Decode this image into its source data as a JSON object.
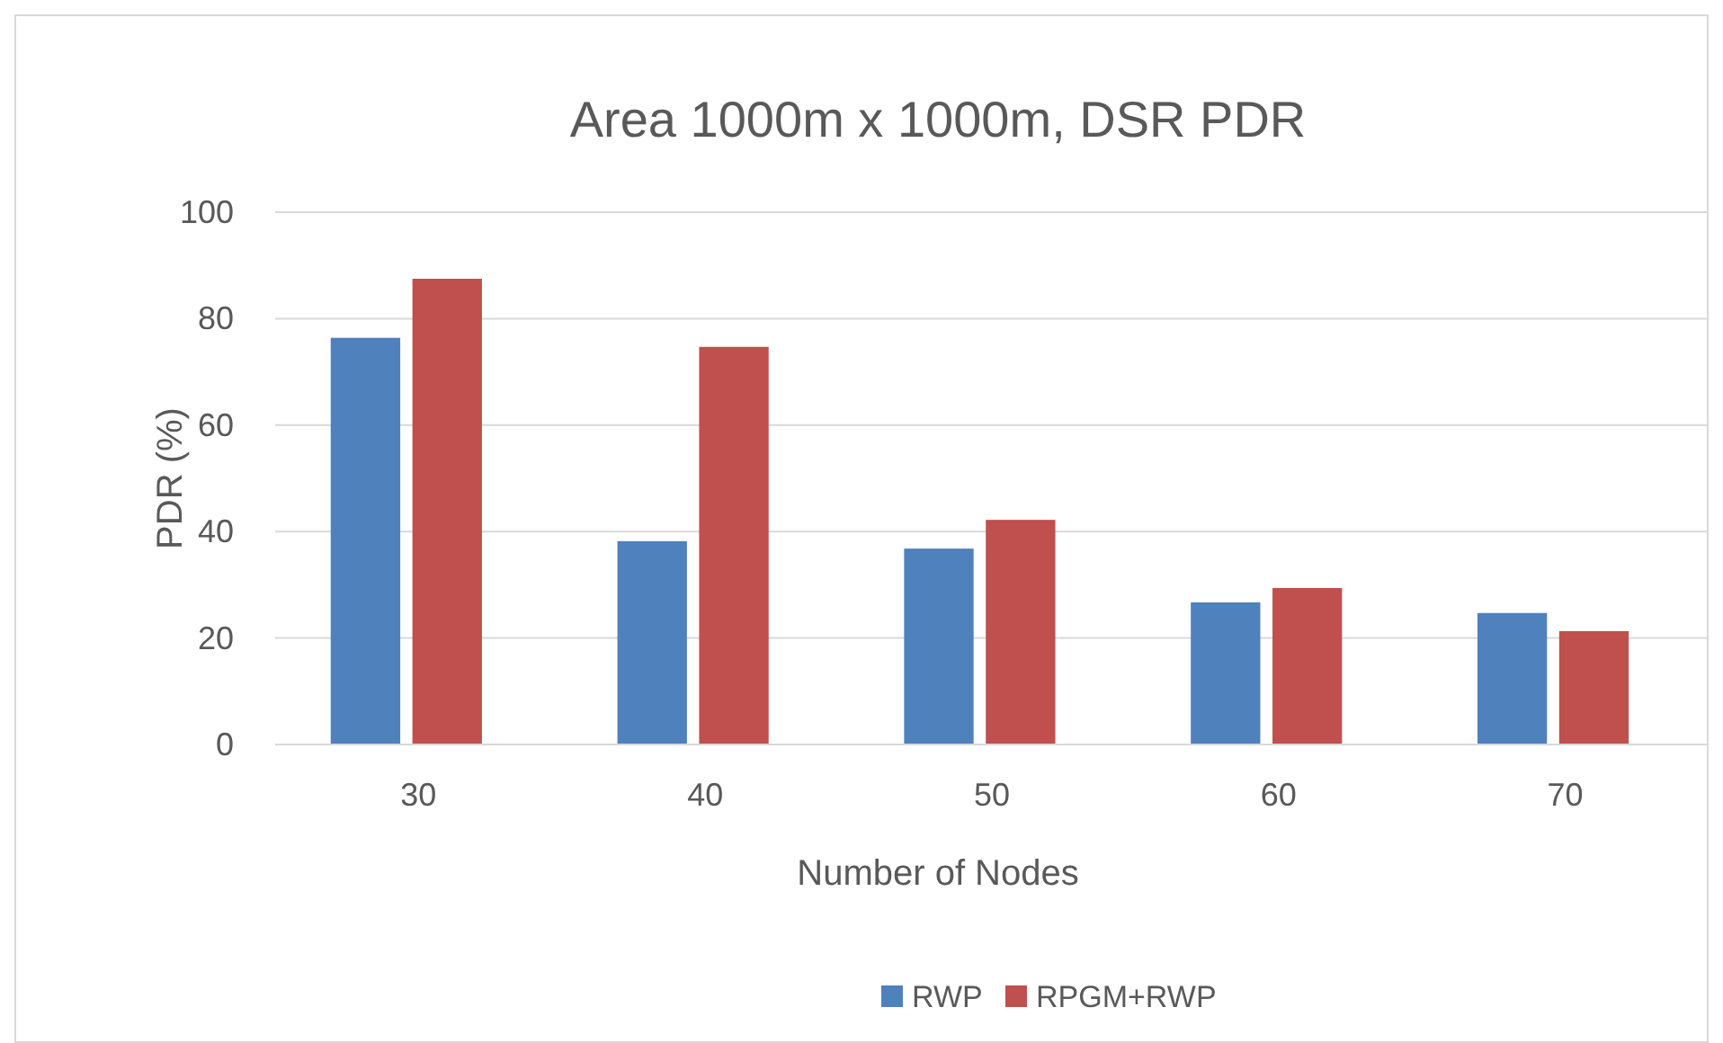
{
  "chart_data": {
    "type": "bar",
    "title": "Area 1000m x 1000m, DSR PDR",
    "xlabel": "Number of Nodes",
    "ylabel": "PDR (%)",
    "categories": [
      "30",
      "40",
      "50",
      "60",
      "70"
    ],
    "series": [
      {
        "name": "RWP",
        "color": "#4f81bd",
        "values": [
          76.4,
          38.2,
          36.8,
          26.7,
          24.7
        ]
      },
      {
        "name": "RPGM+RWP",
        "color": "#c0504d",
        "values": [
          87.5,
          74.7,
          42.2,
          29.4,
          21.3
        ]
      }
    ],
    "ylim": [
      0,
      100
    ],
    "yticks": [
      0,
      20,
      40,
      60,
      80,
      100
    ],
    "grid": "y",
    "legend": "bottom"
  }
}
